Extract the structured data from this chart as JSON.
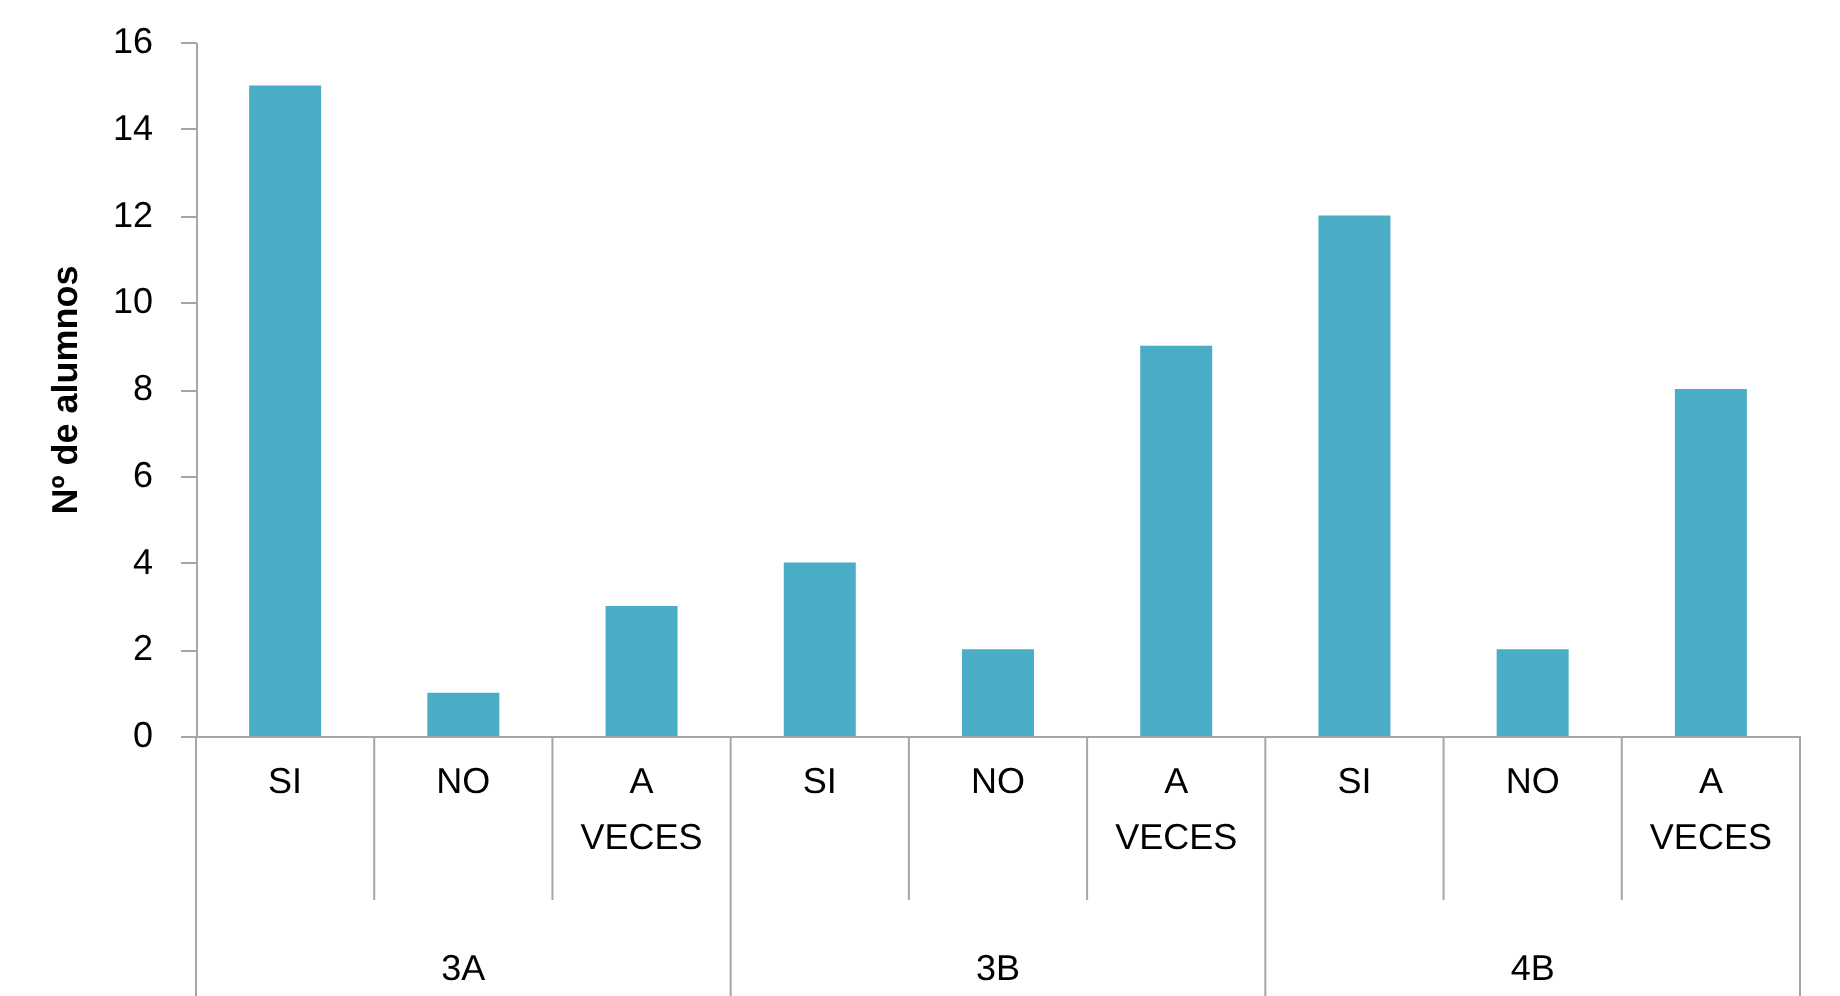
{
  "chart_data": {
    "type": "bar",
    "ylabel": "Nº de alumnos",
    "categories": [
      "SI",
      "NO",
      "A VECES",
      "SI",
      "NO",
      "A VECES",
      "SI",
      "NO",
      "A VECES"
    ],
    "values": [
      15,
      1,
      3,
      4,
      2,
      9,
      12,
      2,
      8
    ],
    "color": "#4bacc6",
    "ylim": [
      0,
      16
    ],
    "yticks": [
      0,
      2,
      4,
      6,
      8,
      10,
      12,
      14,
      16
    ],
    "annotations": [
      "3A",
      "3B",
      "4B"
    ]
  }
}
